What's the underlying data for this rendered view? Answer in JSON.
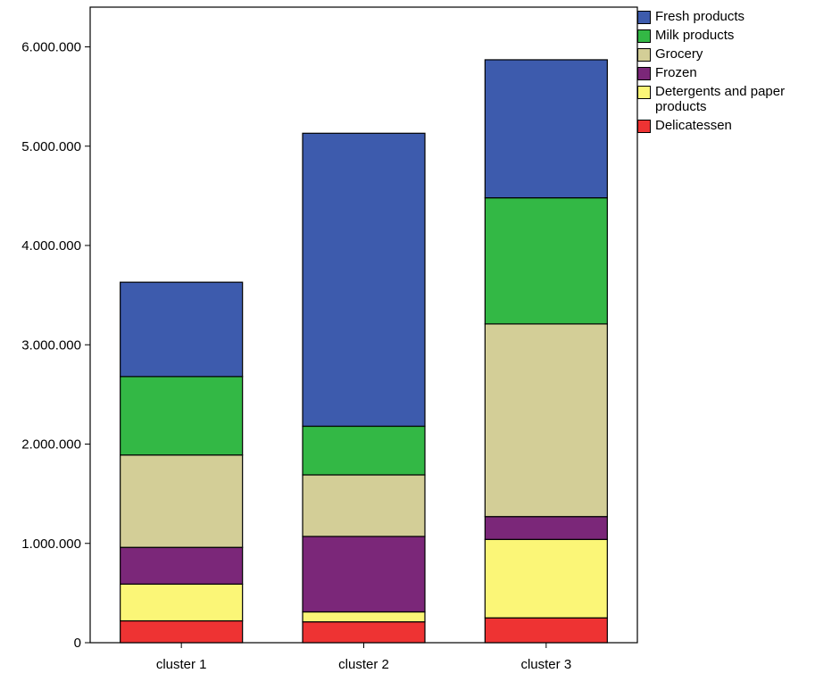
{
  "chart_data": {
    "type": "bar",
    "stacked": true,
    "title": "",
    "xlabel": "",
    "ylabel": "",
    "ylim": [
      0,
      6400000
    ],
    "yticks": [
      0,
      1000000,
      2000000,
      3000000,
      4000000,
      5000000,
      6000000
    ],
    "ytick_labels": [
      "0",
      "1.000.000",
      "2.000.000",
      "3.000.000",
      "4.000.000",
      "5.000.000",
      "6.000.000"
    ],
    "categories": [
      "cluster 1",
      "cluster 2",
      "cluster 3"
    ],
    "legend_position": "right",
    "series": [
      {
        "name": "Delicatessen",
        "color": "#ee3333",
        "values": [
          220000,
          210000,
          250000
        ]
      },
      {
        "name": "Detergents and paper products",
        "color": "#fbf677",
        "values": [
          370000,
          100000,
          790000
        ]
      },
      {
        "name": "Frozen",
        "color": "#7b2779",
        "values": [
          370000,
          760000,
          230000
        ]
      },
      {
        "name": "Grocery",
        "color": "#d3ce97",
        "values": [
          930000,
          620000,
          1940000
        ]
      },
      {
        "name": "Milk products",
        "color": "#33b845",
        "values": [
          790000,
          490000,
          1270000
        ]
      },
      {
        "name": "Fresh products",
        "color": "#3d5bad",
        "values": [
          950000,
          2950000,
          1390000
        ]
      }
    ]
  }
}
